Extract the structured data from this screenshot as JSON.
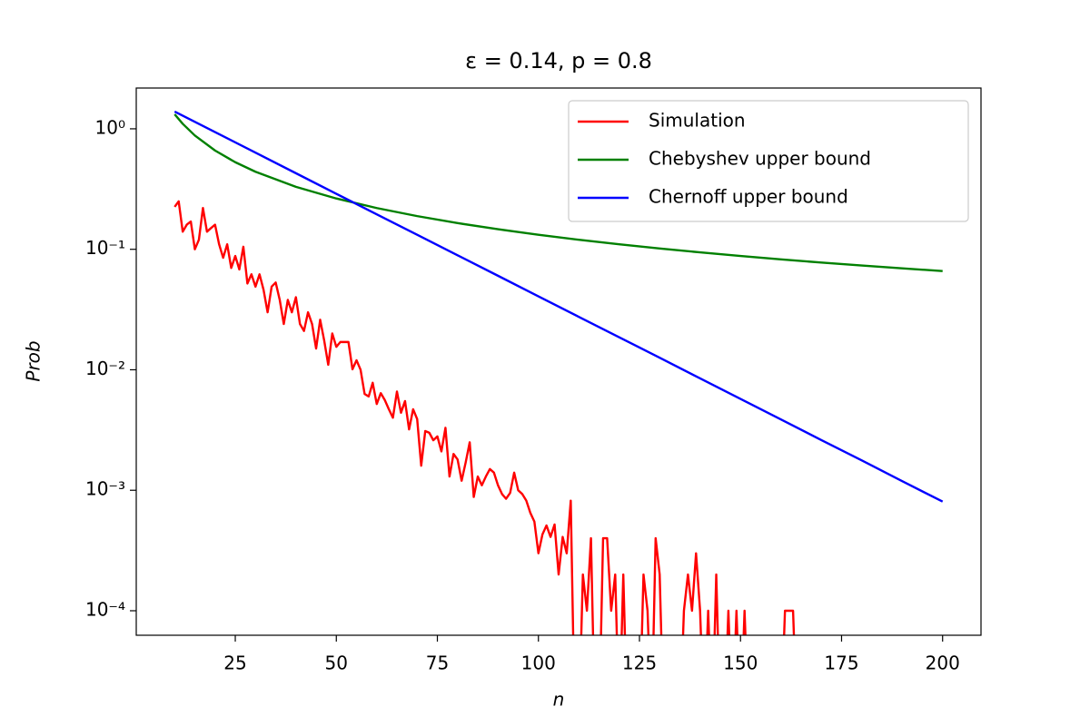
{
  "chart_data": {
    "type": "line",
    "title": "ε = 0.14, p = 0.8",
    "xlabel": "n",
    "ylabel": "Prob",
    "log_y": true,
    "legend": "upper right",
    "xlim": [
      0.5,
      209.5
    ],
    "ylim": [
      6.26e-05,
      2.18
    ],
    "xticks": [
      25,
      50,
      75,
      100,
      125,
      150,
      175,
      200
    ],
    "yticks": [
      {
        "value": 1,
        "label": "10⁰"
      },
      {
        "value": 0.1,
        "label": "10⁻¹"
      },
      {
        "value": 0.01,
        "label": "10⁻²"
      },
      {
        "value": 0.001,
        "label": "10⁻³"
      },
      {
        "value": 0.0001,
        "label": "10⁻⁴"
      }
    ],
    "series": [
      {
        "name": "Simulation",
        "color": "#ff0000",
        "x": [
          10,
          11,
          12,
          13,
          14,
          15,
          16,
          17,
          18,
          19,
          20,
          21,
          22,
          23,
          24,
          25,
          26,
          27,
          28,
          29,
          30,
          31,
          32,
          33,
          34,
          35,
          36,
          37,
          38,
          39,
          40,
          41,
          42,
          43,
          44,
          45,
          46,
          47,
          48,
          49,
          50,
          51,
          52,
          53,
          54,
          55,
          56,
          57,
          58,
          59,
          60,
          61,
          62,
          63,
          64,
          65,
          66,
          67,
          68,
          69,
          70,
          71,
          72,
          73,
          74,
          75,
          76,
          77,
          78,
          79,
          80,
          81,
          82,
          83,
          84,
          85,
          86,
          87,
          88,
          89,
          90,
          91,
          92,
          93,
          94,
          95,
          96,
          97,
          98,
          99,
          100,
          101,
          102,
          103,
          104,
          105,
          106,
          107,
          108,
          109,
          110,
          111,
          112,
          113,
          114,
          115,
          116,
          117,
          118,
          119,
          120,
          121,
          122,
          123,
          124,
          125,
          126,
          127,
          128,
          129,
          130,
          131,
          132,
          133,
          134,
          135,
          136,
          137,
          138,
          139,
          140,
          141,
          142,
          143,
          144,
          145,
          146,
          147,
          148,
          149,
          150,
          151,
          152,
          153,
          154,
          155,
          156,
          157,
          158,
          159,
          160,
          161,
          162,
          163,
          164,
          165,
          166,
          167,
          168,
          169,
          170,
          171,
          172,
          173,
          174,
          175,
          176,
          177,
          178,
          179,
          180,
          181,
          182,
          183,
          184,
          185,
          186,
          187,
          188,
          189,
          190,
          191,
          192,
          193,
          194,
          195,
          196,
          197,
          198,
          199,
          200
        ],
        "values": [
          0.225,
          0.25,
          0.14,
          0.16,
          0.17,
          0.1,
          0.12,
          0.22,
          0.14,
          0.15,
          0.16,
          0.11,
          0.085,
          0.11,
          0.07,
          0.088,
          0.068,
          0.105,
          0.052,
          0.062,
          0.049,
          0.062,
          0.046,
          0.03,
          0.049,
          0.053,
          0.038,
          0.024,
          0.038,
          0.03,
          0.04,
          0.024,
          0.021,
          0.03,
          0.024,
          0.015,
          0.026,
          0.0175,
          0.011,
          0.02,
          0.0155,
          0.017,
          0.017,
          0.017,
          0.0101,
          0.012,
          0.01,
          0.0063,
          0.006,
          0.0078,
          0.0052,
          0.0064,
          0.0056,
          0.0047,
          0.004,
          0.0066,
          0.0044,
          0.0055,
          0.0032,
          0.0047,
          0.0039,
          0.0016,
          0.0031,
          0.003,
          0.0026,
          0.0028,
          0.0021,
          0.0033,
          0.0013,
          0.002,
          0.0018,
          0.0012,
          0.0017,
          0.0025,
          0.00088,
          0.0013,
          0.0011,
          0.0013,
          0.0015,
          0.0014,
          0.0011,
          0.00093,
          0.00085,
          0.00095,
          0.0014,
          0.001,
          0.00093,
          0.00082,
          0.00065,
          0.00055,
          0.0003,
          0.00043,
          0.00051,
          0.00041,
          0.00052,
          0.0002,
          0.00041,
          0.0003,
          0.00082,
          0,
          0,
          0.0002,
          0.0001,
          0.0004,
          0,
          0,
          0.0004,
          0.0004,
          0.0001,
          0.0002,
          0,
          0.0002,
          0,
          0,
          0,
          0,
          0.0002,
          0.0001,
          0,
          0.0004,
          0.0002,
          0,
          0,
          0,
          0,
          0,
          0.0001,
          0.0002,
          0.0001,
          0.0003,
          0.0001,
          0,
          0.0001,
          0,
          0.0002,
          0,
          0,
          0.0001,
          0,
          0.0001,
          0,
          0.0001,
          0,
          0,
          0,
          0,
          0,
          0,
          0,
          0,
          0,
          0.0001,
          0.0001,
          0.0001,
          0,
          0,
          0,
          0,
          0,
          0,
          0,
          0,
          0,
          0,
          0,
          0,
          0,
          0,
          0,
          0,
          0,
          0,
          0,
          0,
          0,
          0,
          0,
          0,
          0,
          0,
          0,
          0,
          0,
          0,
          0,
          0,
          0,
          0,
          0,
          0,
          0
        ]
      },
      {
        "name": "Chebyshev upper bound",
        "color": "#008000",
        "x": [
          10,
          12,
          15,
          20,
          25,
          30,
          40,
          50,
          60,
          70,
          80,
          90,
          100,
          110,
          120,
          130,
          140,
          150,
          160,
          170,
          180,
          190,
          200
        ],
        "values": [
          1.32,
          1.1,
          0.88,
          0.66,
          0.528,
          0.44,
          0.33,
          0.264,
          0.22,
          0.1886,
          0.165,
          0.1467,
          0.132,
          0.12,
          0.11,
          0.1015,
          0.0943,
          0.088,
          0.0825,
          0.0776,
          0.0733,
          0.0695,
          0.066
        ]
      },
      {
        "name": "Chernoff upper bound",
        "color": "#0000ff",
        "x": [
          10,
          20,
          30,
          40,
          50,
          60,
          70,
          80,
          90,
          100,
          110,
          120,
          130,
          140,
          150,
          160,
          170,
          180,
          190,
          200
        ],
        "values": [
          1.39,
          0.939,
          0.634,
          0.428,
          0.289,
          0.195,
          0.132,
          0.0892,
          0.0603,
          0.0407,
          0.0275,
          0.0186,
          0.0126,
          0.00848,
          0.00573,
          0.00387,
          0.00261,
          0.00177,
          0.00119,
          0.000805
        ]
      }
    ]
  }
}
